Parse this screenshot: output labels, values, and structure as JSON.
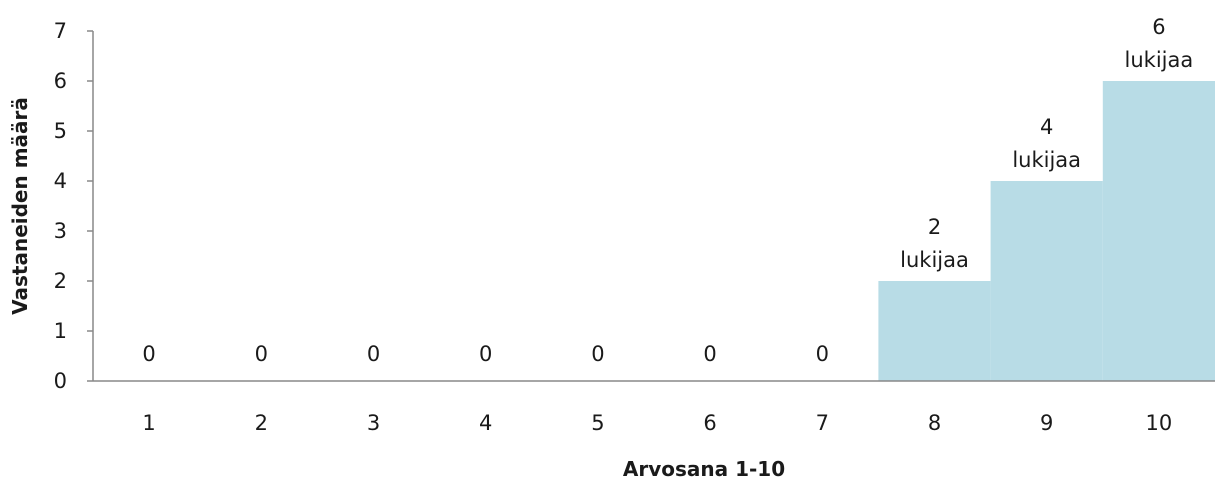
{
  "chart_data": {
    "type": "bar",
    "categories": [
      "1",
      "2",
      "3",
      "4",
      "5",
      "6",
      "7",
      "8",
      "9",
      "10"
    ],
    "values": [
      0,
      0,
      0,
      0,
      0,
      0,
      0,
      2,
      4,
      6
    ],
    "data_labels": [
      [
        "0"
      ],
      [
        "0"
      ],
      [
        "0"
      ],
      [
        "0"
      ],
      [
        "0"
      ],
      [
        "0"
      ],
      [
        "0"
      ],
      [
        "2",
        "lukijaa"
      ],
      [
        "4",
        "lukijaa"
      ],
      [
        "6",
        "lukijaa"
      ]
    ],
    "xlabel": "Arvosana 1-10",
    "ylabel": "Vastaneiden määrä",
    "ylim": [
      0,
      7
    ],
    "yticks": [
      "0",
      "1",
      "2",
      "3",
      "4",
      "5",
      "6",
      "7"
    ],
    "bar_color": "#b8dce6",
    "axis_color": "#888888",
    "grid": false,
    "legend": "none"
  }
}
